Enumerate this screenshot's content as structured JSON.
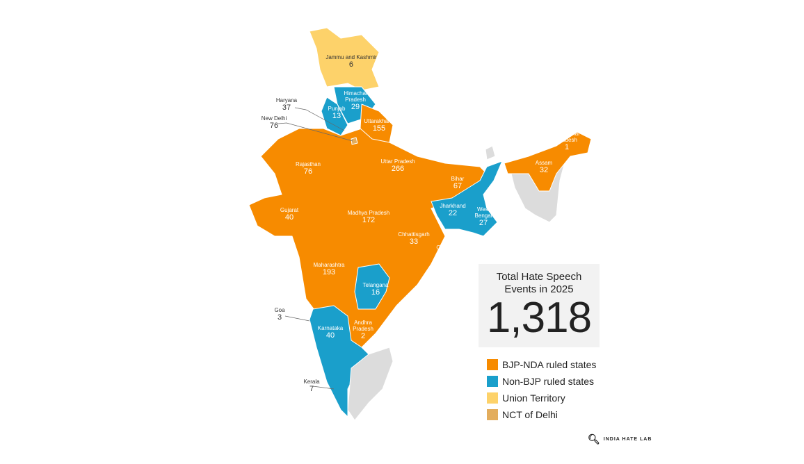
{
  "colors": {
    "bjp": "#f78b00",
    "non_bjp": "#1a9fcb",
    "ut": "#fdd26a",
    "delhi": "#e3ad5d",
    "other": "#dcdcdc",
    "box": "#f2f2f2"
  },
  "regions": [
    {
      "name": "Jammu and Kashmir",
      "count": "6",
      "category": "ut"
    },
    {
      "name": "Himachal Pradesh",
      "count": "29",
      "category": "non_bjp"
    },
    {
      "name": "Punjab",
      "count": "13",
      "category": "non_bjp"
    },
    {
      "name": "Haryana",
      "count": "37",
      "category": "bjp"
    },
    {
      "name": "New Delhi",
      "count": "76",
      "category": "delhi"
    },
    {
      "name": "Uttarakhand",
      "count": "155",
      "category": "bjp"
    },
    {
      "name": "Rajasthan",
      "count": "76",
      "category": "bjp"
    },
    {
      "name": "Uttar Pradesh",
      "count": "266",
      "category": "bjp"
    },
    {
      "name": "Bihar",
      "count": "67",
      "category": "bjp"
    },
    {
      "name": "Arunachal Pradesh",
      "count": "1",
      "category": "bjp"
    },
    {
      "name": "Assam",
      "count": "32",
      "category": "bjp"
    },
    {
      "name": "Gujarat",
      "count": "40",
      "category": "bjp"
    },
    {
      "name": "Madhya Pradesh",
      "count": "172",
      "category": "bjp"
    },
    {
      "name": "Jharkhand",
      "count": "22",
      "category": "non_bjp"
    },
    {
      "name": "West Bengal",
      "count": "27",
      "category": "non_bjp"
    },
    {
      "name": "Chhattisgarh",
      "count": "33",
      "category": "bjp"
    },
    {
      "name": "Odisha",
      "count": "5",
      "category": "bjp"
    },
    {
      "name": "Maharashtra",
      "count": "193",
      "category": "bjp"
    },
    {
      "name": "Telangana",
      "count": "16",
      "category": "non_bjp"
    },
    {
      "name": "Goa",
      "count": "3",
      "category": "bjp"
    },
    {
      "name": "Karnataka",
      "count": "40",
      "category": "non_bjp"
    },
    {
      "name": "Andhra Pradesh",
      "count": "2",
      "category": "bjp"
    },
    {
      "name": "Kerala",
      "count": "7",
      "category": "non_bjp"
    }
  ],
  "total": {
    "title": "Total Hate Speech Events in 2025",
    "value": "1,318"
  },
  "legend": [
    {
      "label": "BJP-NDA ruled states",
      "color": "#f78b00"
    },
    {
      "label": "Non-BJP ruled states",
      "color": "#1a9fcb"
    },
    {
      "label": "Union Territory",
      "color": "#fdd26a"
    },
    {
      "label": "NCT of Delhi",
      "color": "#e3ad5d"
    }
  ],
  "logo": {
    "text": "INDIA HATE LAB"
  }
}
